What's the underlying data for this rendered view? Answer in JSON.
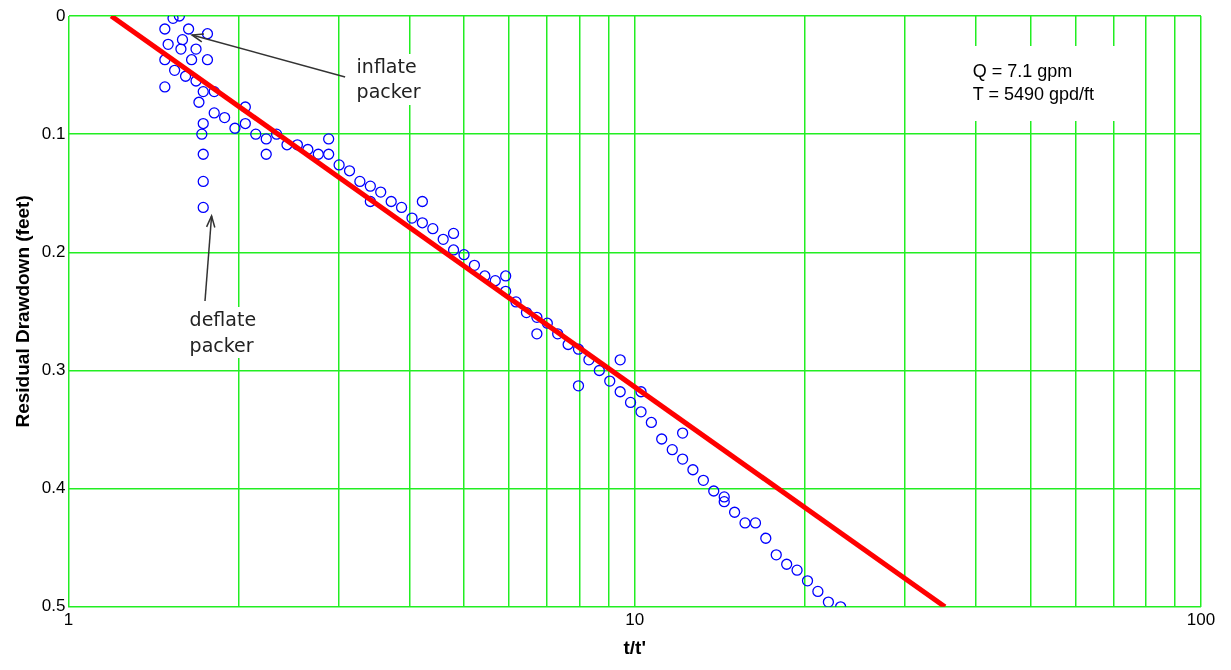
{
  "chart_data": {
    "type": "scatter",
    "xlabel": "t/t'",
    "ylabel": "Residual Drawdown (feet)",
    "log": "x",
    "grid": true,
    "legend": false,
    "marker": "circle",
    "xlim": [
      1,
      100
    ],
    "ylim": [
      0.5,
      0
    ],
    "xticks": [
      1,
      {
        "value": 2,
        "label": null
      },
      {
        "value": 3,
        "label": null
      },
      {
        "value": 4,
        "label": null
      },
      {
        "value": 5,
        "label": null
      },
      {
        "value": 6,
        "label": null
      },
      {
        "value": 7,
        "label": null
      },
      {
        "value": 8,
        "label": null
      },
      {
        "value": 9,
        "label": null
      },
      10,
      {
        "value": 20,
        "label": null
      },
      {
        "value": 30,
        "label": null
      },
      {
        "value": 40,
        "label": null
      },
      {
        "value": 50,
        "label": null
      },
      {
        "value": 60,
        "label": null
      },
      {
        "value": 70,
        "label": null
      },
      {
        "value": 80,
        "label": null
      },
      {
        "value": 90,
        "label": null
      },
      100
    ],
    "yticks": [
      0,
      0.1,
      0.2,
      0.3,
      0.4,
      0.5
    ],
    "series": [
      {
        "color": "#0000ff",
        "x": [
          1.48,
          1.48,
          1.48,
          1.5,
          1.53,
          1.54,
          1.57,
          1.58,
          1.59,
          1.61,
          1.63,
          1.65,
          1.68,
          1.68,
          1.73,
          1.73,
          1.73,
          1.73,
          1.73,
          1.76,
          1.76,
          1.7,
          1.72,
          1.809,
          1.887,
          1.968,
          2.053,
          2.142,
          2.235,
          2.331,
          2.432,
          2.537,
          2.647,
          2.762,
          2.881,
          3.006,
          3.136,
          3.271,
          3.413,
          3.56,
          3.715,
          3.875,
          4.043,
          4.217,
          4.4,
          4.59,
          4.787,
          4.995,
          5.211,
          5.436,
          5.672,
          5.917,
          6.171,
          6.439,
          6.718,
          7.009,
          7.311,
          7.628,
          7.956,
          8.301,
          8.66,
          9.035,
          9.426,
          9.832,
          10.26,
          10.7,
          11.16,
          11.65,
          12.15,
          12.67,
          13.22,
          13.79,
          14.39,
          15.01,
          15.66,
          17.04,
          17.78,
          18.55,
          19.35,
          20.19,
          21.06,
          21.98,
          23.1,
          1.809,
          2.053,
          2.235,
          2.881,
          3.413,
          4.217,
          4.787,
          5.917,
          6.718,
          7.956,
          9.426,
          10.26,
          12.15,
          14.39,
          16.34
        ],
        "values": [
          0.011,
          0.037,
          0.06,
          0.024,
          0.002,
          0.046,
          0,
          0.028,
          0.02,
          0.051,
          0.011,
          0.037,
          0.028,
          0.055,
          0.064,
          0.091,
          0.117,
          0.14,
          0.162,
          0.015,
          0.037,
          0.073,
          0.1,
          0.082,
          0.086,
          0.095,
          0.091,
          0.1,
          0.104,
          0.1,
          0.109,
          0.109,
          0.113,
          0.117,
          0.117,
          0.126,
          0.131,
          0.14,
          0.144,
          0.149,
          0.157,
          0.162,
          0.171,
          0.175,
          0.18,
          0.189,
          0.198,
          0.202,
          0.211,
          0.22,
          0.224,
          0.233,
          0.242,
          0.251,
          0.255,
          0.26,
          0.269,
          0.278,
          0.282,
          0.291,
          0.3,
          0.309,
          0.318,
          0.327,
          0.335,
          0.344,
          0.358,
          0.367,
          0.375,
          0.384,
          0.393,
          0.402,
          0.407,
          0.42,
          0.429,
          0.442,
          0.456,
          0.464,
          0.469,
          0.478,
          0.487,
          0.496,
          0.5,
          0.064,
          0.077,
          0.117,
          0.104,
          0.157,
          0.157,
          0.184,
          0.22,
          0.269,
          0.313,
          0.291,
          0.318,
          0.353,
          0.411,
          0.429
        ]
      },
      {
        "type": "line",
        "color": "#ff0000",
        "marker": "none",
        "x": [
          1.19,
          35.3
        ],
        "values": [
          0,
          0.5
        ]
      }
    ],
    "annotations": [
      {
        "text": "inflate packer",
        "x": 1.63,
        "y": 0.015
      },
      {
        "text": "deflate packer",
        "x": 1.79,
        "y": 0.166
      },
      "Q = 7.1 gpm",
      "T = 5490 gpd/ft"
    ]
  }
}
